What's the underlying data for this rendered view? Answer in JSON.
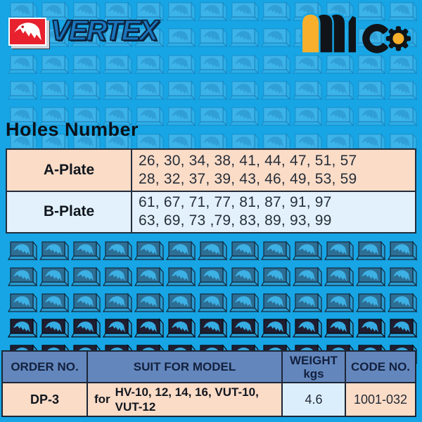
{
  "colors": {
    "background": "#17a5e5",
    "accent_red": "#e8212e",
    "accent_yellow": "#f8b02c",
    "vertex_blue": "#1b75bc",
    "table_peach": "#fbdcc7",
    "table_light_blue": "#e2f1fb",
    "order_header_blue": "#6387bd",
    "weight_cell_blue": "#daeefc"
  },
  "header": {
    "vertex": {
      "wordmark": "VERTEX"
    },
    "mtc": {
      "letters": "mtc"
    }
  },
  "holes_section": {
    "title": "Holes Number",
    "rows": [
      {
        "label": "A-Plate",
        "line1": "26, 30, 34, 38, 41, 44, 47, 51, 57",
        "line2": "28, 32, 37, 39, 43, 46, 49, 53, 59"
      },
      {
        "label": "B-Plate",
        "line1": "61, 67, 71, 77, 81, 87, 91, 97",
        "line2": "63, 69, 73 ,79, 83, 89, 93, 99"
      }
    ]
  },
  "order_table": {
    "headers": {
      "order_no": "ORDER NO.",
      "suit_for_model": "SUIT FOR MODEL",
      "weight_line1": "WEIGHT",
      "weight_line2": "kgs",
      "code_no": "CODE NO."
    },
    "row": {
      "order_no": "DP-3",
      "suit_prefix": "for",
      "suit_line1": "HV-10, 12, 14, 16, VUT-10,",
      "suit_line2": "VUT-12",
      "weight_kgs": "4.6",
      "code_no": "1001-032"
    }
  },
  "icons": {
    "vertex_eagle": "eagle-icon",
    "pattern_tile": "eagle-tile-icon",
    "mtc_gear": "gear-icon"
  }
}
